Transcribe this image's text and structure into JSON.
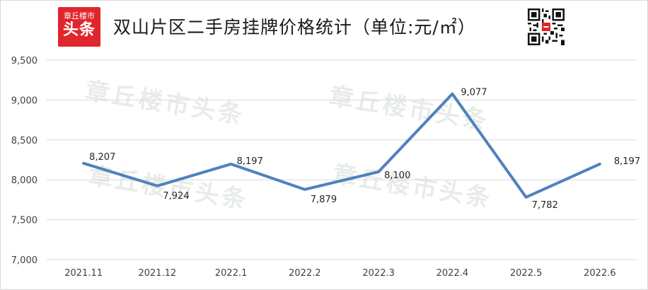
{
  "logo": {
    "top": "章丘楼市",
    "bottom": "头条"
  },
  "title": "双山片区二手房挂牌价格统计（单位:元/㎡）",
  "watermark": "章丘楼市头条",
  "qr": {
    "name": "qr-code-icon"
  },
  "chart_data": {
    "type": "line",
    "categories": [
      "2021.11",
      "2021.12",
      "2022.1",
      "2022.2",
      "2022.3",
      "2022.4",
      "2022.5",
      "2022.6"
    ],
    "series": [
      {
        "values": [
          8207,
          7924,
          8197,
          7879,
          8100,
          9077,
          7782,
          8197
        ],
        "labels": [
          "8,207",
          "7,924",
          "8,197",
          "7,879",
          "8,100",
          "9,077",
          "7,782",
          "8,197"
        ],
        "color": "#4f81bd"
      }
    ],
    "ylim": [
      7000,
      9500
    ],
    "yticks": [
      7000,
      7500,
      8000,
      8500,
      9000,
      9500
    ],
    "ytick_labels": [
      "7,000",
      "7,500",
      "8,000",
      "8,500",
      "9,000",
      "9,500"
    ],
    "grid": true,
    "legend": "none"
  }
}
